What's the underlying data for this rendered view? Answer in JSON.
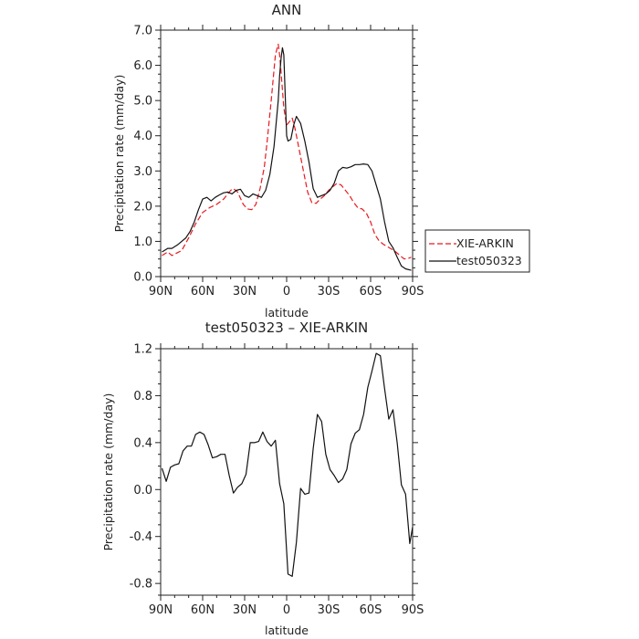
{
  "chart_data": [
    {
      "type": "line",
      "title": "ANN",
      "xlabel": "latitude",
      "ylabel": "Precipitation rate (mm/day)",
      "xlim": [
        90,
        -90
      ],
      "ylim": [
        0,
        7
      ],
      "xticks": [
        90,
        60,
        30,
        0,
        -30,
        -60,
        -90
      ],
      "xtick_labels": [
        "90N",
        "60N",
        "30N",
        "0",
        "30S",
        "60S",
        "90S"
      ],
      "yticks": [
        0,
        1,
        2,
        3,
        4,
        5,
        6,
        7
      ],
      "ytick_labels": [
        "0.0",
        "1.0",
        "2.0",
        "3.0",
        "4.0",
        "5.0",
        "6.0",
        "7.0"
      ],
      "legend_position": "outside-right",
      "series": [
        {
          "name": "XIE-ARKIN",
          "color": "#e8191f",
          "dash": "dashed",
          "x": [
            89,
            85,
            82,
            78,
            75,
            70,
            65,
            60,
            55,
            50,
            45,
            40,
            38,
            35,
            31,
            28,
            25,
            22,
            19,
            16,
            14,
            11,
            8,
            6,
            5,
            4,
            2,
            0,
            -2,
            -4,
            -6,
            -9,
            -12,
            -15,
            -18,
            -21,
            -24,
            -27,
            -30,
            -33,
            -36,
            -39,
            -42,
            -45,
            -48,
            -51,
            -54,
            -57,
            -60,
            -63,
            -66,
            -69,
            -72,
            -75,
            -78,
            -81,
            -84,
            -87,
            -89
          ],
          "y": [
            0.6,
            0.7,
            0.6,
            0.68,
            0.74,
            1.1,
            1.5,
            1.82,
            1.96,
            2.05,
            2.2,
            2.45,
            2.5,
            2.4,
            2.05,
            1.92,
            1.9,
            2.05,
            2.5,
            3.1,
            3.8,
            5.0,
            6.3,
            6.6,
            6.3,
            5.8,
            4.8,
            4.3,
            4.4,
            4.5,
            4.2,
            3.6,
            3.0,
            2.4,
            2.1,
            2.08,
            2.2,
            2.3,
            2.45,
            2.55,
            2.65,
            2.6,
            2.45,
            2.3,
            2.1,
            1.95,
            1.92,
            1.8,
            1.55,
            1.2,
            1.02,
            0.92,
            0.85,
            0.78,
            0.7,
            0.6,
            0.5,
            0.52,
            0.55
          ]
        },
        {
          "name": "test050323",
          "color": "#111111",
          "dash": "solid",
          "x": [
            89,
            85,
            82,
            78,
            75,
            72,
            69,
            66,
            63,
            60,
            57,
            54,
            51,
            48,
            45,
            42,
            39,
            36,
            33,
            30,
            27,
            24,
            21,
            18,
            15,
            12,
            9,
            6,
            5,
            4,
            3,
            2,
            0,
            -1,
            -3,
            -5,
            -7,
            -10,
            -13,
            -16,
            -19,
            -22,
            -25,
            -28,
            -31,
            -34,
            -37,
            -40,
            -43,
            -46,
            -49,
            -52,
            -55,
            -58,
            -61,
            -64,
            -67,
            -70,
            -73,
            -76,
            -79,
            -82,
            -85,
            -89
          ],
          "y": [
            0.7,
            0.8,
            0.8,
            0.9,
            1.0,
            1.1,
            1.28,
            1.55,
            1.9,
            2.2,
            2.25,
            2.15,
            2.25,
            2.32,
            2.38,
            2.4,
            2.35,
            2.45,
            2.48,
            2.3,
            2.25,
            2.35,
            2.3,
            2.25,
            2.45,
            2.9,
            3.7,
            5.0,
            5.7,
            6.2,
            6.5,
            6.3,
            4.0,
            3.85,
            3.9,
            4.3,
            4.55,
            4.35,
            3.85,
            3.25,
            2.5,
            2.25,
            2.3,
            2.35,
            2.45,
            2.65,
            3.0,
            3.1,
            3.08,
            3.12,
            3.18,
            3.18,
            3.2,
            3.18,
            3.0,
            2.6,
            2.2,
            1.55,
            1.0,
            0.82,
            0.55,
            0.3,
            0.22,
            0.18
          ]
        }
      ]
    },
    {
      "type": "line",
      "title": "test050323 – XIE-ARKIN",
      "xlabel": "latitude",
      "ylabel": "Precipitation rate (mm/day)",
      "xlim": [
        90,
        -90
      ],
      "ylim": [
        -0.9,
        1.2
      ],
      "xticks": [
        90,
        60,
        30,
        0,
        -30,
        -60,
        -90
      ],
      "xtick_labels": [
        "90N",
        "60N",
        "30N",
        "0",
        "30S",
        "60S",
        "90S"
      ],
      "yticks": [
        1.2,
        0.8,
        0.4,
        0.0,
        -0.4,
        -0.8
      ],
      "ytick_labels": [
        "1.2",
        "0.8",
        "0.4",
        "0.0",
        "-0.4",
        "-0.8"
      ],
      "series": [
        {
          "color": "#111111",
          "dash": "solid",
          "x": [
            89,
            86,
            83,
            80,
            77,
            74,
            71,
            68,
            65,
            62,
            59,
            56,
            53,
            50,
            47,
            44,
            41,
            38,
            35,
            32,
            29,
            26,
            23,
            20,
            17,
            14,
            11,
            8,
            5,
            2,
            -1,
            -4,
            -7,
            -10,
            -13,
            -16,
            -19,
            -22,
            -25,
            -28,
            -31,
            -34,
            -37,
            -40,
            -43,
            -46,
            -49,
            -52,
            -55,
            -58,
            -61,
            -64,
            -67,
            -70,
            -73,
            -76,
            -79,
            -82,
            -85,
            -88,
            -90
          ],
          "y": [
            0.18,
            0.07,
            0.19,
            0.21,
            0.22,
            0.33,
            0.37,
            0.37,
            0.47,
            0.49,
            0.47,
            0.38,
            0.27,
            0.28,
            0.3,
            0.3,
            0.12,
            -0.03,
            0.02,
            0.05,
            0.13,
            0.4,
            0.4,
            0.41,
            0.49,
            0.41,
            0.37,
            0.42,
            0.05,
            -0.12,
            -0.72,
            -0.74,
            -0.45,
            0.01,
            -0.04,
            -0.03,
            0.35,
            0.64,
            0.58,
            0.3,
            0.17,
            0.12,
            0.06,
            0.09,
            0.17,
            0.39,
            0.48,
            0.51,
            0.64,
            0.87,
            1.01,
            1.16,
            1.14,
            0.86,
            0.6,
            0.68,
            0.4,
            0.04,
            -0.04,
            -0.46,
            -0.32
          ]
        }
      ]
    }
  ]
}
